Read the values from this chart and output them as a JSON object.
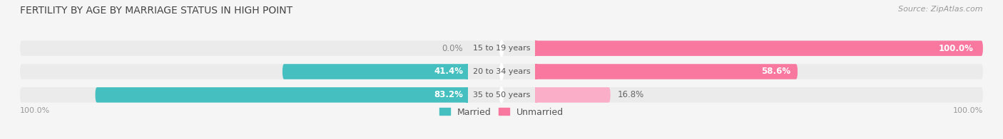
{
  "title": "FERTILITY BY AGE BY MARRIAGE STATUS IN HIGH POINT",
  "source": "Source: ZipAtlas.com",
  "categories": [
    "15 to 19 years",
    "20 to 34 years",
    "35 to 50 years"
  ],
  "married": [
    0.0,
    41.4,
    83.2
  ],
  "unmarried": [
    100.0,
    58.6,
    16.8
  ],
  "married_color": "#45bfbf",
  "unmarried_color": "#f878a0",
  "unmarried_light_color": "#fbaec8",
  "bar_bg_color": "#ebebeb",
  "background_color": "#f5f5f5",
  "title_fontsize": 10,
  "source_fontsize": 8,
  "label_fontsize": 8.5,
  "category_fontsize": 8,
  "legend_fontsize": 9,
  "axis_label_fontsize": 8
}
